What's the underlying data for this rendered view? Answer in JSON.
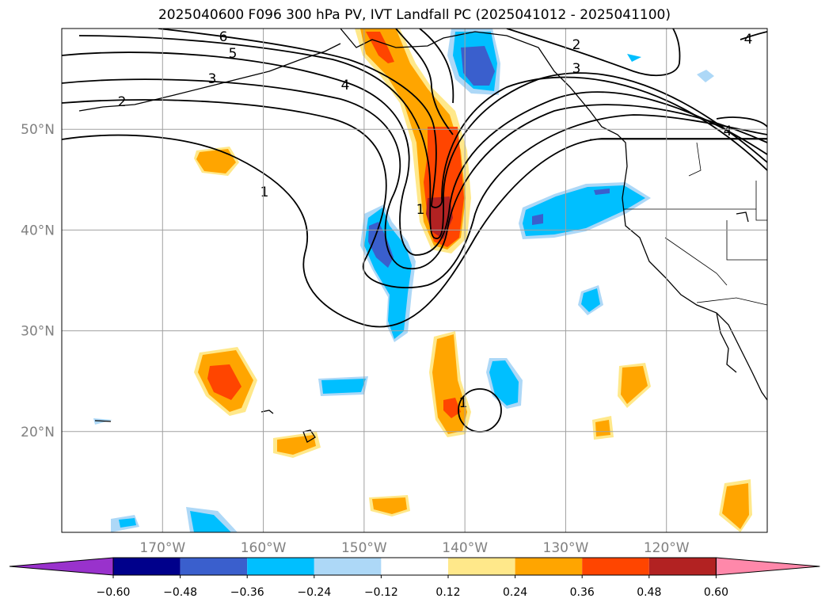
{
  "title": "2025040600 F096 300 hPa PV, IVT Landfall PC (2025041012 - 2025041100)",
  "map": {
    "lon_range": [
      -180,
      -110
    ],
    "lat_range": [
      10,
      60
    ],
    "lat_ticks": [
      {
        "value": 50,
        "label": "50°N"
      },
      {
        "value": 40,
        "label": "40°N"
      },
      {
        "value": 30,
        "label": "30°N"
      },
      {
        "value": 20,
        "label": "20°N"
      }
    ],
    "lon_ticks": [
      {
        "value": -170,
        "label": "170°W"
      },
      {
        "value": -160,
        "label": "160°W"
      },
      {
        "value": -150,
        "label": "150°W"
      },
      {
        "value": -140,
        "label": "140°W"
      },
      {
        "value": -130,
        "label": "130°W"
      },
      {
        "value": -120,
        "label": "120°W"
      }
    ],
    "pv_contour_labels": [
      "6",
      "5",
      "4",
      "3",
      "2",
      "2",
      "3",
      "4",
      "4",
      "1",
      "1",
      "1"
    ],
    "grid": true
  },
  "colorbar": {
    "tick_labels": [
      "−0.60",
      "−0.48",
      "−0.36",
      "−0.24",
      "−0.12",
      "0.12",
      "0.24",
      "0.36",
      "0.48",
      "0.60"
    ],
    "colors": [
      "#9932cc",
      "#00008b",
      "#3a5fcd",
      "#00bfff",
      "#add8f7",
      "#ffffff",
      "#ffe88a",
      "#ffa500",
      "#ff4500",
      "#b22222",
      "#ff88aa"
    ],
    "extend": "both"
  }
}
